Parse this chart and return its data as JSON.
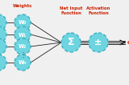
{
  "bg_color": "#f0f0f0",
  "node_face": "#6dd4e0",
  "node_edge": "#40b0c0",
  "line_color": "#222222",
  "text_color_red": "#cc2200",
  "text_color_white": "#ffffff",
  "weight_labels": [
    "w₀",
    "w₁",
    "w₂",
    "wₙ"
  ],
  "sum_label": "Σ",
  "act_label": "±",
  "out_label": "out",
  "header_weights": "Weights",
  "header_net": "Net Input\nFunction",
  "header_act": "Activation\nFunction",
  "figsize": [
    1.6,
    1.06
  ],
  "dpi": 100
}
